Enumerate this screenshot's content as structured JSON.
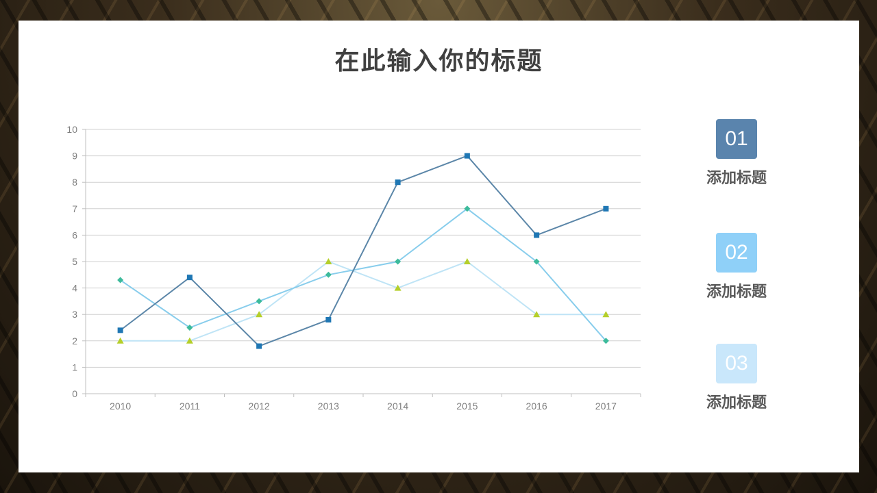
{
  "slide": {
    "title": "在此输入你的标题"
  },
  "items": [
    {
      "number": "01",
      "label": "添加标题",
      "color": "#5a84ad"
    },
    {
      "number": "02",
      "label": "添加标题",
      "color": "#8fd0f8"
    },
    {
      "number": "03",
      "label": "添加标题",
      "color": "#c9e7fb"
    }
  ],
  "chart_data": {
    "type": "line",
    "categories": [
      "2010",
      "2011",
      "2012",
      "2013",
      "2014",
      "2015",
      "2016",
      "2017"
    ],
    "ylim": [
      0,
      10
    ],
    "yticks": [
      0,
      1,
      2,
      3,
      4,
      5,
      6,
      7,
      8,
      9,
      10
    ],
    "grid": true,
    "series": [
      {
        "values": [
          2.4,
          4.4,
          1.8,
          2.8,
          8,
          9,
          6,
          7
        ],
        "line_color": "#5b86a8",
        "marker": "square",
        "marker_color": "#1f77b4"
      },
      {
        "values": [
          4.3,
          2.5,
          3.5,
          4.5,
          5,
          7,
          5,
          2
        ],
        "line_color": "#88cdec",
        "marker": "diamond",
        "marker_color": "#3dbb9c"
      },
      {
        "values": [
          2,
          2,
          3,
          5,
          4,
          5,
          3,
          3
        ],
        "line_color": "#bfe4f6",
        "marker": "triangle",
        "marker_color": "#b5cf2a"
      }
    ]
  }
}
